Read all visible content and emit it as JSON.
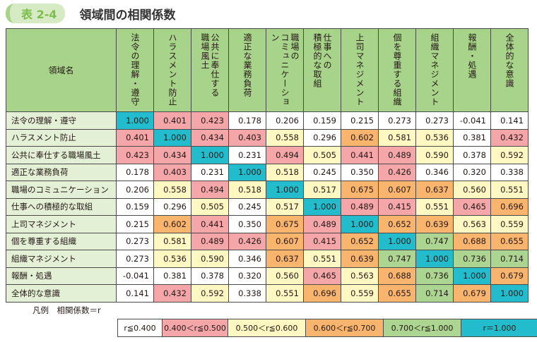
{
  "header": {
    "badge": "表 2-4",
    "title": "領域間の相関係数"
  },
  "table": {
    "corner_label": "領域名",
    "columns": [
      "法令の理解・遵守",
      "ハラスメント防止",
      "公共に奉仕する\n職場風土",
      "適正な業務負荷",
      "職場の\nコミュニケーション",
      "仕事への\n積極的な取組",
      "上司マネジメント",
      "個を尊重する組織",
      "組織マネジメント",
      "報酬・処遇",
      "全体的な意識"
    ],
    "rows": [
      {
        "label": "法令の理解・遵守",
        "values": [
          "1.000",
          "0.401",
          "0.423",
          "0.178",
          "0.206",
          "0.159",
          "0.215",
          "0.273",
          "0.273",
          "-0.041",
          "0.141"
        ]
      },
      {
        "label": "ハラスメント防止",
        "values": [
          "0.401",
          "1.000",
          "0.434",
          "0.403",
          "0.558",
          "0.296",
          "0.602",
          "0.581",
          "0.536",
          "0.381",
          "0.432"
        ]
      },
      {
        "label": "公共に奉仕する職場風土",
        "values": [
          "0.423",
          "0.434",
          "1.000",
          "0.231",
          "0.494",
          "0.505",
          "0.441",
          "0.489",
          "0.590",
          "0.378",
          "0.592"
        ]
      },
      {
        "label": "適正な業務負荷",
        "values": [
          "0.178",
          "0.403",
          "0.231",
          "1.000",
          "0.518",
          "0.245",
          "0.350",
          "0.426",
          "0.346",
          "0.320",
          "0.338"
        ]
      },
      {
        "label": "職場のコミュニケーション",
        "values": [
          "0.206",
          "0.558",
          "0.494",
          "0.518",
          "1.000",
          "0.517",
          "0.675",
          "0.607",
          "0.637",
          "0.560",
          "0.551"
        ]
      },
      {
        "label": "仕事への積極的な取組",
        "values": [
          "0.159",
          "0.296",
          "0.505",
          "0.245",
          "0.517",
          "1.000",
          "0.489",
          "0.415",
          "0.551",
          "0.465",
          "0.696"
        ]
      },
      {
        "label": "上司マネジメント",
        "values": [
          "0.215",
          "0.602",
          "0.441",
          "0.350",
          "0.675",
          "0.489",
          "1.000",
          "0.652",
          "0.639",
          "0.563",
          "0.559"
        ]
      },
      {
        "label": "個を尊重する組織",
        "values": [
          "0.273",
          "0.581",
          "0.489",
          "0.426",
          "0.607",
          "0.415",
          "0.652",
          "1.000",
          "0.747",
          "0.688",
          "0.655"
        ]
      },
      {
        "label": "組織マネジメント",
        "values": [
          "0.273",
          "0.536",
          "0.590",
          "0.346",
          "0.637",
          "0.551",
          "0.639",
          "0.747",
          "1.000",
          "0.736",
          "0.714"
        ]
      },
      {
        "label": "報酬・処遇",
        "values": [
          "-0.041",
          "0.381",
          "0.378",
          "0.320",
          "0.560",
          "0.465",
          "0.563",
          "0.688",
          "0.736",
          "1.000",
          "0.679"
        ]
      },
      {
        "label": "全体的な意識",
        "values": [
          "0.141",
          "0.432",
          "0.592",
          "0.338",
          "0.551",
          "0.696",
          "0.559",
          "0.655",
          "0.714",
          "0.679",
          "1.000"
        ]
      }
    ]
  },
  "legend": {
    "label": "凡例　相関係数＝r",
    "items": [
      {
        "text": "r≦0.400",
        "color": "#ffffff"
      },
      {
        "text": "0.400＜r≦0.500",
        "color": "#f4a6a8"
      },
      {
        "text": "0.500＜r≦0.600",
        "color": "#fff8c2"
      },
      {
        "text": "0.600＜r≦0.700",
        "color": "#f9b46e"
      },
      {
        "text": "0.700＜r≦1.000",
        "color": "#acd592"
      },
      {
        "text": "r＝1.000",
        "color": "#22bccc"
      }
    ]
  }
}
